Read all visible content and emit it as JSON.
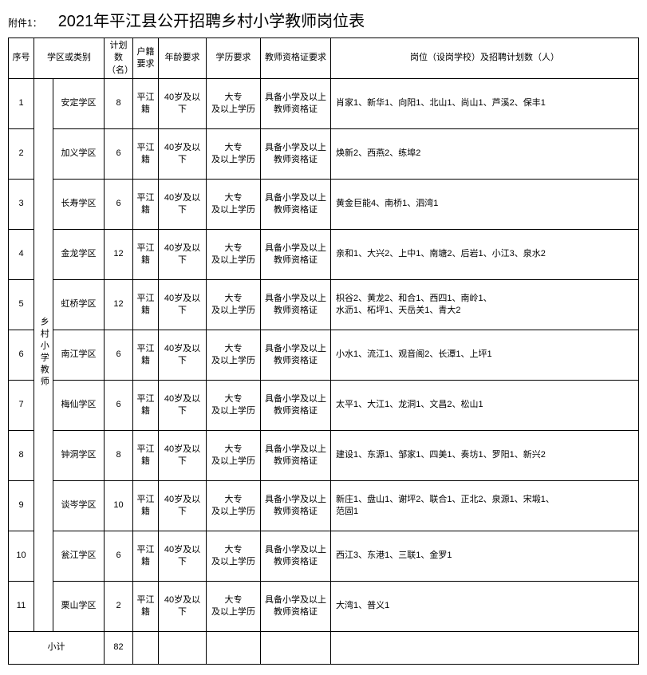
{
  "attachment_label": "附件1：",
  "title": "2021年平江县公开招聘乡村小学教师岗位表",
  "headers": {
    "idx": "序号",
    "category": "学区或类别",
    "plan": "计划数（名）",
    "hukou": "户籍要求",
    "age": "年龄要求",
    "edu": "学历要求",
    "qual": "教师资格证要求",
    "positions": "岗位（设岗学校）及招聘计划数（人）"
  },
  "category_label": "乡村小学教师",
  "rows": [
    {
      "idx": "1",
      "district": "安定学区",
      "plan": "8",
      "hukou": "平江籍",
      "age": "40岁及以下",
      "edu": "大专\n及以上学历",
      "qual": "具备小学及以上\n教师资格证",
      "positions": "肖家1、新华1、向阳1、北山1、尚山1、芦溪2、保丰1"
    },
    {
      "idx": "2",
      "district": "加义学区",
      "plan": "6",
      "hukou": "平江籍",
      "age": "40岁及以下",
      "edu": "大专\n及以上学历",
      "qual": "具备小学及以上\n教师资格证",
      "positions": "焕新2、西燕2、练埠2"
    },
    {
      "idx": "3",
      "district": "长寿学区",
      "plan": "6",
      "hukou": "平江籍",
      "age": "40岁及以下",
      "edu": "大专\n及以上学历",
      "qual": "具备小学及以上\n教师资格证",
      "positions": "黄金巨能4、南桥1、泗湾1"
    },
    {
      "idx": "4",
      "district": "金龙学区",
      "plan": "12",
      "hukou": "平江籍",
      "age": "40岁及以下",
      "edu": "大专\n及以上学历",
      "qual": "具备小学及以上\n教师资格证",
      "positions": "亲和1、大兴2、上中1、南塘2、后岩1、小江3、泉水2"
    },
    {
      "idx": "5",
      "district": "虹桥学区",
      "plan": "12",
      "hukou": "平江籍",
      "age": "40岁及以下",
      "edu": "大专\n及以上学历",
      "qual": "具备小学及以上\n教师资格证",
      "positions": "枳谷2、黄龙2、和合1、西四1、南岭1、\n水沥1、柘坪1、天岳关1、青大2"
    },
    {
      "idx": "6",
      "district": "南江学区",
      "plan": "6",
      "hukou": "平江籍",
      "age": "40岁及以下",
      "edu": "大专\n及以上学历",
      "qual": "具备小学及以上\n教师资格证",
      "positions": "小水1、流江1、观音阁2、长潭1、上坪1"
    },
    {
      "idx": "7",
      "district": "梅仙学区",
      "plan": "6",
      "hukou": "平江籍",
      "age": "40岁及以下",
      "edu": "大专\n及以上学历",
      "qual": "具备小学及以上\n教师资格证",
      "positions": "太平1、大江1、龙洞1、文昌2、松山1"
    },
    {
      "idx": "8",
      "district": "钟洞学区",
      "plan": "8",
      "hukou": "平江籍",
      "age": "40岁及以下",
      "edu": "大专\n及以上学历",
      "qual": "具备小学及以上\n教师资格证",
      "positions": "建设1、东源1、邹家1、四美1、奏坊1、罗阳1、新兴2"
    },
    {
      "idx": "9",
      "district": "谈岑学区",
      "plan": "10",
      "hukou": "平江籍",
      "age": "40岁及以下",
      "edu": "大专\n及以上学历",
      "qual": "具备小学及以上\n教师资格证",
      "positions": "新庄1、盘山1、谢坪2、联合1、正北2、泉源1、宋塅1、\n范固1"
    },
    {
      "idx": "10",
      "district": "瓮江学区",
      "plan": "6",
      "hukou": "平江籍",
      "age": "40岁及以下",
      "edu": "大专\n及以上学历",
      "qual": "具备小学及以上\n教师资格证",
      "positions": "西江3、东港1、三联1、金罗1"
    },
    {
      "idx": "11",
      "district": "栗山学区",
      "plan": "2",
      "hukou": "平江籍",
      "age": "40岁及以下",
      "edu": "大专\n及以上学历",
      "qual": "具备小学及以上\n教师资格证",
      "positions": "大湾1、普义1"
    }
  ],
  "subtotal": {
    "label": "小计",
    "plan": "82"
  }
}
